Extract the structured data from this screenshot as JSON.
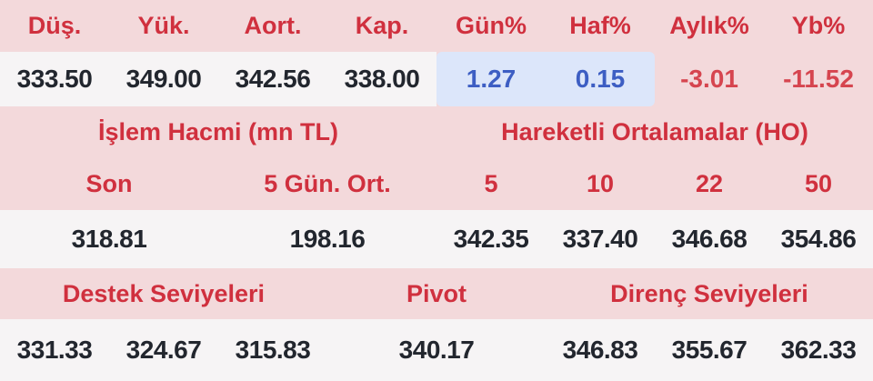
{
  "colors": {
    "band_pink": "#f3d9db",
    "band_light": "#f6f4f5",
    "label_red": "#d0303e",
    "value_dark": "#22262e",
    "positive_bg": "#dce6fa",
    "positive_text": "#3d5ec3",
    "negative_text": "#d6454f"
  },
  "summary": {
    "headers": [
      "Düş.",
      "Yük.",
      "Aort.",
      "Kap.",
      "Gün%",
      "Haf%",
      "Aylık%",
      "Yb%"
    ],
    "low": "333.50",
    "high": "349.00",
    "avg": "342.56",
    "close": "338.00",
    "day_pct": "1.27",
    "week_pct": "0.15",
    "month_pct": "-3.01",
    "ytd_pct": "-11.52"
  },
  "volume": {
    "title": "İşlem Hacmi (mn TL)",
    "col_last": "Son",
    "col_avg5": "5 Gün. Ort.",
    "last": "318.81",
    "avg5": "198.16"
  },
  "moving_averages": {
    "title": "Hareketli Ortalamalar (HO)",
    "periods": [
      "5",
      "10",
      "22",
      "50"
    ],
    "values": [
      "342.35",
      "337.40",
      "346.68",
      "354.86"
    ]
  },
  "levels": {
    "support_title": "Destek Seviyeleri",
    "pivot_title": "Pivot",
    "resistance_title": "Direnç Seviyeleri",
    "support": [
      "331.33",
      "324.67",
      "315.83"
    ],
    "pivot": "340.17",
    "resistance": [
      "346.83",
      "355.67",
      "362.33"
    ]
  }
}
